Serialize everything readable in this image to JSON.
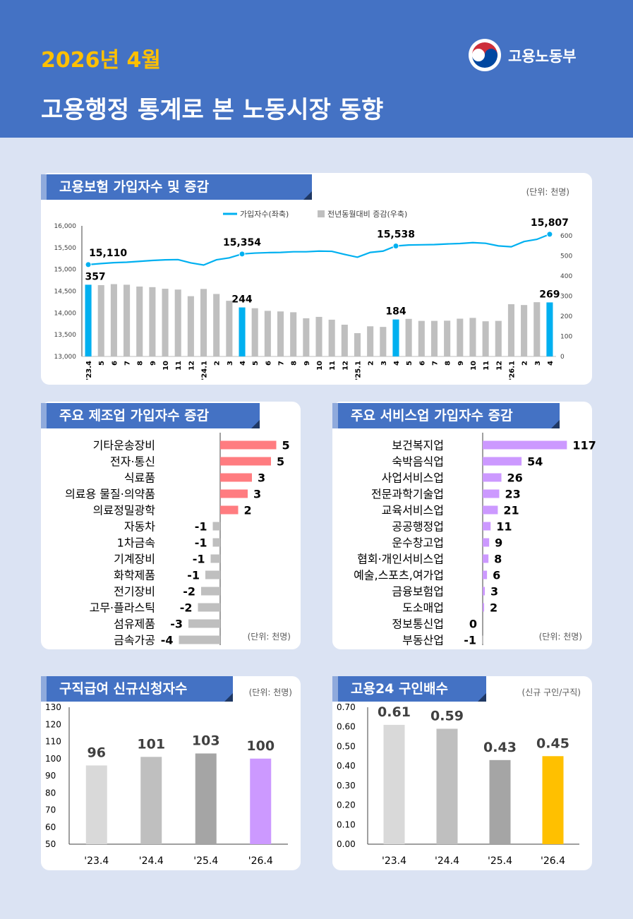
{
  "header": {
    "date": "2026년 4월",
    "title": "고용행정 통계로 본 노동시장 동향",
    "ministry": "고용노동부"
  },
  "colors": {
    "primary": "#4472c4",
    "accent": "#ffc000",
    "line": "#00b0f0",
    "bar_gray": "#bfbfbf",
    "manufacturing_pos": "#ff7c80",
    "services_pos": "#cc99ff"
  },
  "chart_data": [
    {
      "id": "insurance",
      "type": "line+bar",
      "title": "고용보험 가입자수 및 증감",
      "unit_note": "(단위: 천명)",
      "legend": [
        "가입자수(좌축)",
        "전년동월대비 증감(우축)"
      ],
      "categories": [
        "'23.4",
        "5",
        "6",
        "7",
        "8",
        "9",
        "10",
        "11",
        "12",
        "'24.1",
        "2",
        "3",
        "4",
        "5",
        "6",
        "7",
        "8",
        "9",
        "10",
        "11",
        "12",
        "'25.1",
        "2",
        "3",
        "4",
        "5",
        "6",
        "7",
        "8",
        "9",
        "10",
        "11",
        "12",
        "'26.1",
        "2",
        "3",
        "4"
      ],
      "series": [
        {
          "name": "가입자수(좌축)",
          "axis": "left",
          "values": [
            15110,
            15135,
            15155,
            15165,
            15185,
            15205,
            15220,
            15225,
            15150,
            15100,
            15220,
            15265,
            15354,
            15375,
            15385,
            15390,
            15405,
            15405,
            15420,
            15415,
            15345,
            15280,
            15390,
            15420,
            15538,
            15560,
            15565,
            15570,
            15585,
            15595,
            15615,
            15600,
            15540,
            15520,
            15640,
            15690,
            15807
          ]
        },
        {
          "name": "전년동월대비 증감(우축)",
          "axis": "right",
          "values": [
            357,
            355,
            360,
            357,
            348,
            345,
            337,
            333,
            300,
            336,
            311,
            277,
            244,
            240,
            227,
            224,
            220,
            190,
            197,
            183,
            158,
            116,
            150,
            147,
            184,
            187,
            177,
            177,
            178,
            188,
            192,
            175,
            177,
            260,
            256,
            270,
            269
          ]
        }
      ],
      "highlight_index": [
        0,
        12,
        24,
        36
      ],
      "highlight_labels_line": [
        "15,110",
        "15,354",
        "15,538",
        "15,807"
      ],
      "highlight_labels_bar": [
        "357",
        "244",
        "184",
        "269"
      ],
      "y_left": {
        "min": 13000,
        "max": 16000,
        "ticks": [
          "13,000",
          "13,500",
          "14,000",
          "14,500",
          "15,000",
          "15,500",
          "16,000"
        ]
      },
      "y_right": {
        "min": 0,
        "max": 650,
        "ticks": [
          "0",
          "100",
          "200",
          "300",
          "400",
          "500",
          "600"
        ]
      }
    },
    {
      "id": "manufacturing",
      "type": "bar",
      "orientation": "horizontal",
      "title": "주요 제조업 가입자수 증감",
      "unit_note": "(단위: 천명)",
      "categories": [
        "기타운송장비",
        "전자·통신",
        "식료품",
        "의료용 물질·의약품",
        "의료정밀광학",
        "자동차",
        "1차금속",
        "기계장비",
        "화학제품",
        "전기장비",
        "고무·플라스틱",
        "섬유제품",
        "금속가공"
      ],
      "values": [
        5.3,
        4.8,
        3.0,
        2.6,
        1.7,
        -0.7,
        -0.7,
        -0.9,
        -1.4,
        -1.8,
        -2.1,
        -3.0,
        -3.9
      ],
      "labels": [
        "5",
        "5",
        "3",
        "3",
        "2",
        "-1",
        "-1",
        "-1",
        "-1",
        "-2",
        "-2",
        "-3",
        "-4"
      ]
    },
    {
      "id": "services",
      "type": "bar",
      "orientation": "horizontal",
      "title": "주요 서비스업 가입자수 증감",
      "unit_note": "(단위: 천명)",
      "categories": [
        "보건복지업",
        "숙박음식업",
        "사업서비스업",
        "전문과학기술업",
        "교육서비스업",
        "공공행정업",
        "운수창고업",
        "협회·개인서비스업",
        "예술,스포츠,여가업",
        "금융보험업",
        "도소매업",
        "정보통신업",
        "부동산업"
      ],
      "values": [
        117,
        54,
        26,
        23,
        21,
        11,
        9,
        8,
        6,
        3,
        2,
        0,
        -1
      ],
      "labels": [
        "117",
        "54",
        "26",
        "23",
        "21",
        "11",
        "9",
        "8",
        "6",
        "3",
        "2",
        "0",
        "-1"
      ]
    },
    {
      "id": "jobseekers",
      "type": "bar",
      "title": "구직급여 신규신청자수",
      "unit_note": "(단위: 천명)",
      "categories": [
        "'23.4",
        "'24.4",
        "'25.4",
        "'26.4"
      ],
      "values": [
        96,
        101,
        103,
        100
      ],
      "colors": [
        "#d9d9d9",
        "#bfbfbf",
        "#a5a5a5",
        "#cc99ff"
      ],
      "ylim": [
        50,
        130
      ],
      "ticks": [
        "50",
        "60",
        "70",
        "80",
        "90",
        "100",
        "110",
        "120",
        "130"
      ]
    },
    {
      "id": "work24",
      "type": "bar",
      "title": "고용24 구인배수",
      "unit_note": "(신규 구인/구직)",
      "categories": [
        "'23.4",
        "'24.4",
        "'25.4",
        "'26.4"
      ],
      "values": [
        0.61,
        0.59,
        0.43,
        0.45
      ],
      "labels": [
        "0.61",
        "0.59",
        "0.43",
        "0.45"
      ],
      "colors": [
        "#d9d9d9",
        "#bfbfbf",
        "#a5a5a5",
        "#ffc000"
      ],
      "ylim": [
        0,
        0.7
      ],
      "ticks": [
        "0.00",
        "0.10",
        "0.20",
        "0.30",
        "0.40",
        "0.50",
        "0.60",
        "0.70"
      ]
    }
  ]
}
